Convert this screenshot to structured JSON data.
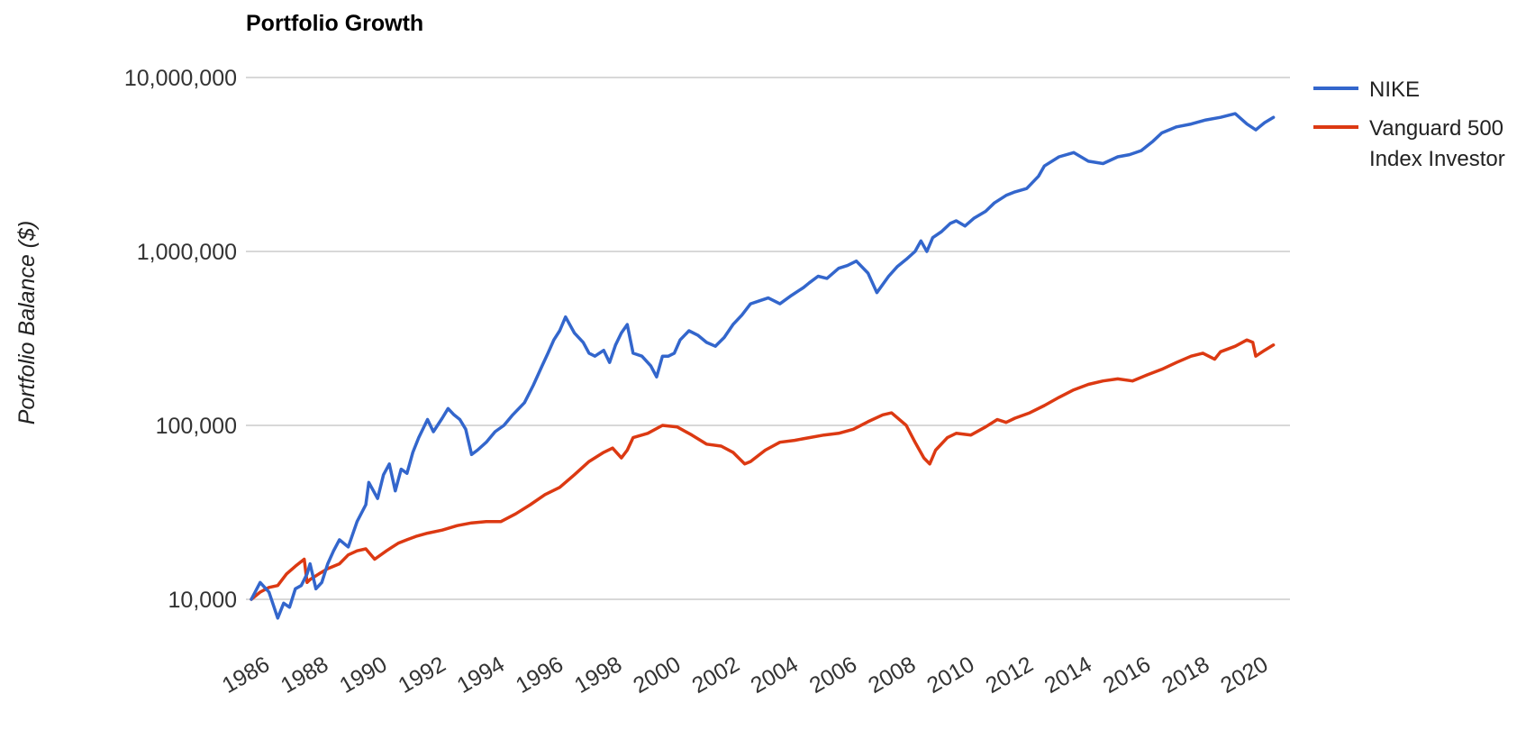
{
  "chart_data": {
    "type": "line",
    "title": "Portfolio Growth",
    "xlabel": "",
    "ylabel": "Portfolio Balance ($)",
    "y_scale": "log",
    "ylim": [
      6000,
      13000000
    ],
    "xlim": [
      1986,
      2021.2
    ],
    "grid": true,
    "legend_position": "right",
    "y_ticks": [
      {
        "value": 10000,
        "label": "10,000"
      },
      {
        "value": 100000,
        "label": "100,000"
      },
      {
        "value": 1000000,
        "label": "1,000,000"
      },
      {
        "value": 10000000,
        "label": "10,000,000"
      }
    ],
    "x_ticks": [
      {
        "value": 1986,
        "label": "1986"
      },
      {
        "value": 1988,
        "label": "1988"
      },
      {
        "value": 1990,
        "label": "1990"
      },
      {
        "value": 1992,
        "label": "1992"
      },
      {
        "value": 1994,
        "label": "1994"
      },
      {
        "value": 1996,
        "label": "1996"
      },
      {
        "value": 1998,
        "label": "1998"
      },
      {
        "value": 2000,
        "label": "2000"
      },
      {
        "value": 2002,
        "label": "2002"
      },
      {
        "value": 2004,
        "label": "2004"
      },
      {
        "value": 2006,
        "label": "2006"
      },
      {
        "value": 2008,
        "label": "2008"
      },
      {
        "value": 2010,
        "label": "2010"
      },
      {
        "value": 2012,
        "label": "2012"
      },
      {
        "value": 2014,
        "label": "2014"
      },
      {
        "value": 2016,
        "label": "2016"
      },
      {
        "value": 2018,
        "label": "2018"
      },
      {
        "value": 2020,
        "label": "2020"
      }
    ],
    "series": [
      {
        "name": "NIKE",
        "legend_label": [
          "NIKE"
        ],
        "color": "#3366cc",
        "x": [
          1986.0,
          1986.3,
          1986.6,
          1986.9,
          1987.1,
          1987.3,
          1987.5,
          1987.7,
          1987.9,
          1988.0,
          1988.2,
          1988.4,
          1988.6,
          1988.8,
          1989.0,
          1989.3,
          1989.6,
          1989.9,
          1990.0,
          1990.3,
          1990.5,
          1990.7,
          1990.9,
          1991.1,
          1991.3,
          1991.5,
          1991.7,
          1992.0,
          1992.2,
          1992.5,
          1992.7,
          1992.9,
          1993.1,
          1993.3,
          1993.5,
          1993.7,
          1994.0,
          1994.3,
          1994.6,
          1994.9,
          1995.3,
          1995.6,
          1995.9,
          1996.1,
          1996.3,
          1996.5,
          1996.7,
          1997.0,
          1997.3,
          1997.5,
          1997.7,
          1998.0,
          1998.2,
          1998.4,
          1998.6,
          1998.8,
          1999.0,
          1999.3,
          1999.6,
          1999.8,
          2000.0,
          2000.2,
          2000.4,
          2000.6,
          2000.9,
          2001.2,
          2001.5,
          2001.8,
          2002.1,
          2002.4,
          2002.7,
          2003.0,
          2003.3,
          2003.6,
          2004.0,
          2004.4,
          2004.8,
          2005.0,
          2005.3,
          2005.6,
          2006.0,
          2006.3,
          2006.6,
          2007.0,
          2007.3,
          2007.7,
          2008.0,
          2008.3,
          2008.6,
          2008.8,
          2009.0,
          2009.2,
          2009.5,
          2009.8,
          2010.0,
          2010.3,
          2010.6,
          2011.0,
          2011.3,
          2011.7,
          2012.0,
          2012.4,
          2012.8,
          2013.0,
          2013.5,
          2014.0,
          2014.5,
          2015.0,
          2015.5,
          2015.9,
          2016.3,
          2016.7,
          2017.0,
          2017.5,
          2018.0,
          2018.5,
          2019.0,
          2019.5,
          2019.9,
          2020.2,
          2020.5,
          2020.8
        ],
        "values": [
          10000,
          12500,
          11000,
          7800,
          9500,
          9000,
          11500,
          12000,
          14000,
          16000,
          11500,
          12500,
          16000,
          19000,
          22000,
          20000,
          28000,
          35000,
          47000,
          38000,
          52000,
          60000,
          42000,
          56000,
          53000,
          70000,
          85000,
          108000,
          92000,
          110000,
          125000,
          115000,
          108000,
          95000,
          68000,
          72000,
          80000,
          92000,
          100000,
          115000,
          135000,
          170000,
          220000,
          260000,
          310000,
          350000,
          420000,
          340000,
          300000,
          260000,
          250000,
          270000,
          230000,
          290000,
          340000,
          380000,
          260000,
          250000,
          220000,
          190000,
          250000,
          250000,
          260000,
          310000,
          350000,
          330000,
          300000,
          285000,
          320000,
          380000,
          430000,
          500000,
          520000,
          540000,
          500000,
          560000,
          620000,
          660000,
          720000,
          700000,
          800000,
          830000,
          880000,
          750000,
          580000,
          720000,
          820000,
          900000,
          1000000,
          1150000,
          1000000,
          1200000,
          1300000,
          1450000,
          1500000,
          1400000,
          1550000,
          1700000,
          1900000,
          2100000,
          2200000,
          2300000,
          2700000,
          3100000,
          3500000,
          3700000,
          3300000,
          3200000,
          3500000,
          3600000,
          3800000,
          4300000,
          4800000,
          5200000,
          5400000,
          5700000,
          5900000,
          6200000,
          5400000,
          5000000,
          5500000,
          5900000
        ]
      },
      {
        "name": "Vanguard 500 Index Investor",
        "legend_label": [
          "Vanguard 500",
          "Index Investor"
        ],
        "color": "#dc3912",
        "x": [
          1986.0,
          1986.3,
          1986.6,
          1986.9,
          1987.2,
          1987.5,
          1987.8,
          1987.9,
          1988.0,
          1988.3,
          1988.6,
          1989.0,
          1989.3,
          1989.6,
          1989.9,
          1990.2,
          1990.6,
          1990.8,
          1991.0,
          1991.3,
          1991.6,
          1992.0,
          1992.5,
          1993.0,
          1993.5,
          1994.0,
          1994.5,
          1995.0,
          1995.5,
          1996.0,
          1996.5,
          1997.0,
          1997.5,
          1998.0,
          1998.3,
          1998.6,
          1998.8,
          1999.0,
          1999.5,
          2000.0,
          2000.5,
          2001.0,
          2001.5,
          2002.0,
          2002.4,
          2002.8,
          2003.0,
          2003.5,
          2004.0,
          2004.5,
          2005.0,
          2005.5,
          2006.0,
          2006.5,
          2007.0,
          2007.5,
          2007.8,
          2008.3,
          2008.6,
          2008.9,
          2009.1,
          2009.3,
          2009.7,
          2010.0,
          2010.5,
          2011.0,
          2011.4,
          2011.7,
          2012.0,
          2012.5,
          2013.0,
          2013.5,
          2014.0,
          2014.5,
          2015.0,
          2015.5,
          2016.0,
          2016.5,
          2017.0,
          2017.5,
          2018.0,
          2018.4,
          2018.8,
          2019.0,
          2019.5,
          2019.9,
          2020.1,
          2020.2,
          2020.5,
          2020.8
        ],
        "values": [
          10000,
          11000,
          11700,
          12000,
          14000,
          15500,
          17000,
          12500,
          13000,
          14000,
          15000,
          16000,
          18000,
          19000,
          19500,
          17000,
          19000,
          20000,
          21000,
          22000,
          23000,
          24000,
          25000,
          26500,
          27500,
          28000,
          28000,
          31000,
          35000,
          40000,
          44000,
          52000,
          62000,
          70000,
          74000,
          65000,
          72000,
          85000,
          90000,
          100000,
          98000,
          88000,
          78000,
          76000,
          70000,
          60000,
          62000,
          72000,
          80000,
          82000,
          85000,
          88000,
          90000,
          95000,
          105000,
          115000,
          118000,
          100000,
          80000,
          65000,
          60000,
          72000,
          85000,
          90000,
          88000,
          98000,
          108000,
          104000,
          110000,
          118000,
          130000,
          145000,
          160000,
          172000,
          180000,
          185000,
          180000,
          195000,
          210000,
          230000,
          250000,
          260000,
          240000,
          265000,
          285000,
          310000,
          300000,
          250000,
          270000,
          290000
        ]
      }
    ]
  }
}
